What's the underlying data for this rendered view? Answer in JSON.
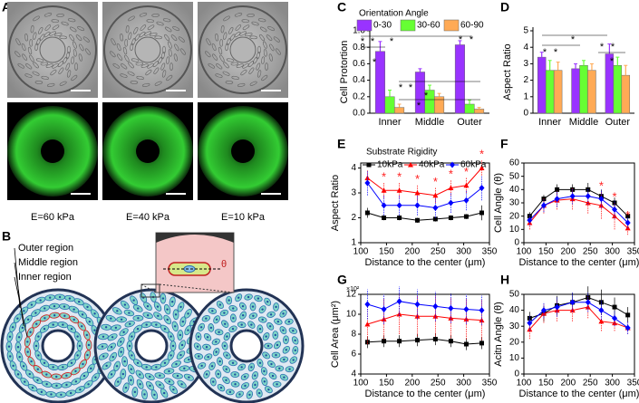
{
  "images": {
    "labels": [
      "E=60 kPa",
      "E=40 kPa",
      "E=10 kPa"
    ],
    "panel": "A"
  },
  "diagram": {
    "panel": "B",
    "labels": [
      "Outer region",
      "Middle region",
      "Inner region"
    ],
    "angle": "θ"
  },
  "chart_data": [
    {
      "type": "bar",
      "panel": "C",
      "ylabel": "Cell Protortion",
      "legend_title": "Orientation Angle",
      "categories": [
        "Inner",
        "Middle",
        "Outer"
      ],
      "series": [
        {
          "name": "0-30",
          "color": "#9933ff",
          "values": [
            0.75,
            0.5,
            0.83
          ],
          "errors": [
            0.12,
            0.04,
            0.05
          ]
        },
        {
          "name": "30-60",
          "color": "#66ff33",
          "values": [
            0.2,
            0.28,
            0.11
          ],
          "errors": [
            0.08,
            0.06,
            0.05
          ]
        },
        {
          "name": "60-90",
          "color": "#ffaa55",
          "values": [
            0.07,
            0.2,
            0.05
          ],
          "errors": [
            0.04,
            0.04,
            0.02
          ]
        }
      ],
      "ylim": [
        0,
        1
      ],
      "yticks": [
        {
          "value": 0,
          "label": "0.0"
        },
        0.2,
        0.4,
        0.6,
        0.8,
        {
          "value": 1,
          "label": "1.0"
        }
      ],
      "significance": [
        "*",
        "*",
        "*",
        "*",
        "*",
        "*",
        "*",
        "*",
        "*",
        "*"
      ]
    },
    {
      "type": "bar",
      "panel": "D",
      "ylabel": "Aspect Ratio",
      "categories": [
        "Inner",
        "Middle",
        "Outer"
      ],
      "series": [
        {
          "name": "0-30",
          "color": "#9933ff",
          "values": [
            3.4,
            2.7,
            3.6
          ],
          "errors": [
            0.3,
            0.3,
            0.6
          ]
        },
        {
          "name": "30-60",
          "color": "#66ff33",
          "values": [
            2.6,
            2.9,
            2.9
          ],
          "errors": [
            0.6,
            0.3,
            0.5
          ]
        },
        {
          "name": "60-90",
          "color": "#ffaa55",
          "values": [
            2.6,
            2.6,
            2.3
          ],
          "errors": [
            0.5,
            0.4,
            0.6
          ]
        }
      ],
      "ylim": [
        0,
        5
      ],
      "yticks": [
        0,
        1,
        2,
        3,
        4,
        5
      ],
      "significance": [
        "*",
        "*",
        "*",
        "*",
        "*",
        "*"
      ]
    },
    {
      "type": "line",
      "panel": "E",
      "ylabel": "Aspect Ratio",
      "xlabel": "Distance to the center (μm)",
      "legend_title": "Substrate Rigidity",
      "x": [
        113,
        145,
        175,
        210,
        245,
        275,
        305,
        335
      ],
      "series": [
        {
          "name": "10kPa",
          "color": "#000000",
          "values": [
            2.2,
            2.0,
            2.0,
            1.9,
            1.95,
            2.0,
            2.05,
            2.2
          ],
          "errors": [
            0.2,
            0.1,
            0.1,
            0.1,
            0.1,
            0.1,
            0.1,
            0.3
          ]
        },
        {
          "name": "40kPa",
          "color": "#ff0000",
          "values": [
            3.6,
            3.1,
            3.1,
            3.0,
            2.9,
            3.2,
            3.3,
            4.0
          ],
          "errors": [
            0.3,
            0.3,
            0.3,
            0.3,
            0.3,
            0.3,
            0.3,
            0.3
          ]
        },
        {
          "name": "60kPa",
          "color": "#0000ff",
          "values": [
            3.4,
            2.5,
            2.5,
            2.5,
            2.4,
            2.6,
            2.7,
            3.2
          ],
          "errors": [
            0.5,
            0.4,
            0.4,
            0.4,
            0.4,
            0.4,
            0.4,
            0.5
          ]
        }
      ],
      "xlim": [
        100,
        350
      ],
      "xticks": [
        100,
        150,
        200,
        250,
        300,
        350
      ],
      "ylim": [
        1,
        4.2
      ],
      "yticks": [
        1,
        2,
        3,
        4
      ],
      "significance": [
        "*",
        "*",
        "*",
        "*",
        "*",
        "*",
        "*"
      ]
    },
    {
      "type": "line",
      "panel": "F",
      "ylabel": "Cell Angle (θ)",
      "xlabel": "Distance to the center (μm)",
      "x": [
        113,
        145,
        175,
        210,
        245,
        275,
        305,
        335
      ],
      "series": [
        {
          "name": "10kPa",
          "color": "#000000",
          "values": [
            20,
            33,
            40,
            40,
            40,
            35,
            30,
            20
          ],
          "errors": [
            3,
            3,
            4,
            4,
            5,
            5,
            4,
            3
          ]
        },
        {
          "name": "40kPa",
          "color": "#ff0000",
          "values": [
            15,
            28,
            32,
            33,
            30,
            28,
            20,
            11
          ],
          "errors": [
            5,
            6,
            7,
            8,
            8,
            10,
            10,
            5
          ]
        },
        {
          "name": "60kPa",
          "color": "#0000ff",
          "values": [
            17,
            28,
            33,
            35,
            35,
            33,
            25,
            15
          ],
          "errors": [
            4,
            5,
            6,
            6,
            6,
            7,
            7,
            4
          ]
        }
      ],
      "xlim": [
        100,
        350
      ],
      "xticks": [
        100,
        150,
        200,
        250,
        300,
        350
      ],
      "ylim": [
        0,
        60
      ],
      "yticks": [
        0,
        10,
        20,
        30,
        40,
        50,
        60
      ],
      "significance": [
        "*",
        "*",
        "*"
      ]
    },
    {
      "type": "line",
      "panel": "G",
      "ylabel": "Cell Area (μm²)",
      "yscale_label": "×10²",
      "xlabel": "Distance to the center (μm)",
      "x": [
        113,
        145,
        175,
        210,
        245,
        275,
        305,
        335
      ],
      "series": [
        {
          "name": "10kPa",
          "color": "#000000",
          "values": [
            7.2,
            7.3,
            7.3,
            7.4,
            7.5,
            7.3,
            7.0,
            7.1
          ],
          "errors": [
            0.6,
            0.6,
            0.6,
            0.6,
            0.6,
            0.6,
            0.6,
            0.6
          ]
        },
        {
          "name": "40kPa",
          "color": "#ff0000",
          "values": [
            9.0,
            9.5,
            10.0,
            9.8,
            9.8,
            9.6,
            9.5,
            9.4
          ],
          "errors": [
            2,
            2,
            2,
            2,
            2,
            2,
            2,
            2
          ]
        },
        {
          "name": "60kPa",
          "color": "#0000ff",
          "values": [
            11.0,
            10.5,
            11.3,
            11.0,
            10.8,
            10.6,
            10.5,
            10.4
          ],
          "errors": [
            1.5,
            1.5,
            1.5,
            1.5,
            1.5,
            1.5,
            1.5,
            1.5
          ]
        }
      ],
      "xlim": [
        100,
        350
      ],
      "xticks": [
        100,
        150,
        200,
        250,
        300,
        350
      ],
      "ylim": [
        4,
        12
      ],
      "yticks": [
        4,
        6,
        8,
        10,
        12
      ]
    },
    {
      "type": "line",
      "panel": "H",
      "ylabel": "Acitn Angle (θ)",
      "xlabel": "Distance to the center (μm)",
      "x": [
        113,
        145,
        175,
        210,
        245,
        275,
        305,
        335
      ],
      "series": [
        {
          "name": "10kPa",
          "color": "#000000",
          "values": [
            35,
            38,
            43,
            45,
            48,
            45,
            42,
            37
          ],
          "errors": [
            4,
            5,
            6,
            6,
            7,
            8,
            6,
            5
          ]
        },
        {
          "name": "40kPa",
          "color": "#ff0000",
          "values": [
            28,
            38,
            40,
            40,
            42,
            33,
            32,
            29
          ],
          "errors": [
            6,
            6,
            7,
            7,
            7,
            6,
            5,
            4
          ]
        },
        {
          "name": "60kPa",
          "color": "#0000ff",
          "values": [
            32,
            40,
            42,
            45,
            45,
            40,
            35,
            29
          ],
          "errors": [
            5,
            5,
            6,
            6,
            6,
            6,
            5,
            4
          ]
        }
      ],
      "xlim": [
        100,
        350
      ],
      "xticks": [
        100,
        150,
        200,
        250,
        300,
        350
      ],
      "ylim": [
        0,
        50
      ],
      "yticks": [
        0,
        10,
        20,
        30,
        40,
        50
      ]
    }
  ]
}
